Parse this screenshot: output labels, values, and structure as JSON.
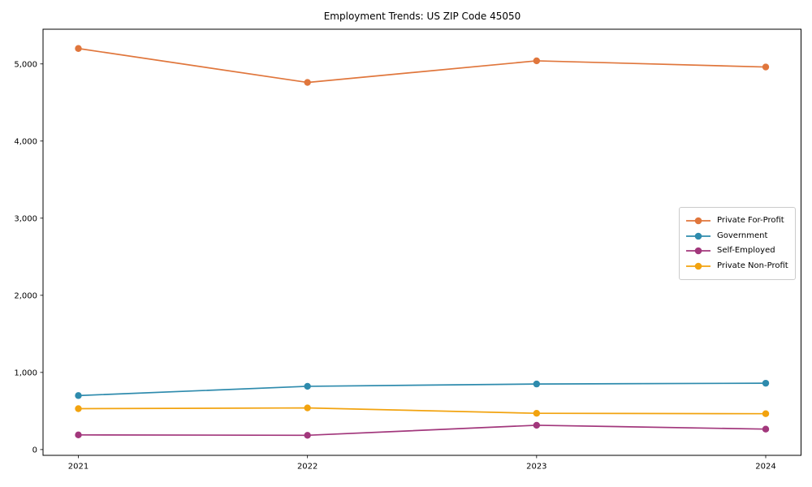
{
  "figure": {
    "title": "Employment Trends: US ZIP Code 45050"
  },
  "chart_data": {
    "type": "line",
    "title": "Employment Trends: US ZIP Code 45050",
    "xlabel": "",
    "ylabel": "",
    "categories": [
      "2021",
      "2022",
      "2023",
      "2024"
    ],
    "series": [
      {
        "name": "Private For-Profit",
        "color": "#E0763C",
        "values": [
          5200,
          4760,
          5040,
          4960
        ]
      },
      {
        "name": "Government",
        "color": "#2E8BAD",
        "values": [
          700,
          820,
          850,
          860
        ]
      },
      {
        "name": "Self-Employed",
        "color": "#A2377C",
        "values": [
          190,
          185,
          315,
          265
        ]
      },
      {
        "name": "Private Non-Profit",
        "color": "#F2A30F",
        "values": [
          530,
          540,
          470,
          465
        ]
      }
    ],
    "ylim": [
      -75,
      5450
    ],
    "yticks": [
      0,
      1000,
      2000,
      3000,
      4000,
      5000
    ],
    "ytick_labels": [
      "0",
      "1,000",
      "2,000",
      "3,000",
      "4,000",
      "5,000"
    ],
    "grid": false,
    "marker": "circle",
    "legend_position": "center-right",
    "axis_color": "#000000",
    "legend_border_color": "#cbcbcb",
    "background_color": "#ffffff"
  }
}
